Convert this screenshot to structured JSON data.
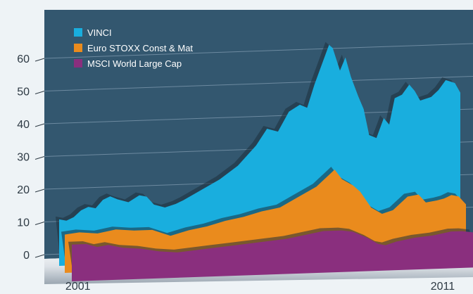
{
  "chart_data": {
    "type": "area",
    "title": "",
    "xlabel": "",
    "ylabel": "",
    "ylim": [
      0,
      60
    ],
    "y_ticks": [
      "0",
      "10",
      "20",
      "30",
      "40",
      "50",
      "60"
    ],
    "x_ticks": [
      {
        "label": "2001",
        "year": 2001
      },
      {
        "label": "2011",
        "year": 2011
      }
    ],
    "x_range": [
      2000.6,
      2011.6
    ],
    "legend_position": "top-left",
    "stacked": false,
    "grid": true,
    "series": [
      {
        "name": "VINCI",
        "color": "#19aede",
        "points": [
          [
            2000.6,
            9.5
          ],
          [
            2000.8,
            9
          ],
          [
            2001.0,
            10
          ],
          [
            2001.2,
            12
          ],
          [
            2001.4,
            13
          ],
          [
            2001.6,
            12.5
          ],
          [
            2001.8,
            15
          ],
          [
            2002.0,
            16
          ],
          [
            2002.2,
            15
          ],
          [
            2002.5,
            14
          ],
          [
            2002.8,
            16
          ],
          [
            2003.0,
            15.5
          ],
          [
            2003.2,
            13
          ],
          [
            2003.5,
            12
          ],
          [
            2003.8,
            13
          ],
          [
            2004.0,
            14
          ],
          [
            2004.5,
            17
          ],
          [
            2005.0,
            20
          ],
          [
            2005.5,
            24
          ],
          [
            2006.0,
            30
          ],
          [
            2006.3,
            35
          ],
          [
            2006.6,
            34
          ],
          [
            2006.9,
            40
          ],
          [
            2007.2,
            42
          ],
          [
            2007.4,
            41
          ],
          [
            2007.6,
            48
          ],
          [
            2007.8,
            54
          ],
          [
            2008.0,
            60
          ],
          [
            2008.1,
            59
          ],
          [
            2008.3,
            52
          ],
          [
            2008.45,
            56
          ],
          [
            2008.6,
            50
          ],
          [
            2008.8,
            44
          ],
          [
            2008.95,
            40
          ],
          [
            2009.1,
            32
          ],
          [
            2009.3,
            31
          ],
          [
            2009.5,
            37
          ],
          [
            2009.65,
            35
          ],
          [
            2009.8,
            43
          ],
          [
            2010.0,
            44
          ],
          [
            2010.2,
            47
          ],
          [
            2010.35,
            45
          ],
          [
            2010.5,
            42
          ],
          [
            2010.8,
            43
          ],
          [
            2011.0,
            45
          ],
          [
            2011.2,
            48
          ],
          [
            2011.45,
            47
          ],
          [
            2011.6,
            44
          ]
        ]
      },
      {
        "name": "Euro STOXX Const & Mat",
        "color": "#ea8b1d",
        "points": [
          [
            2000.6,
            7
          ],
          [
            2001.0,
            7.5
          ],
          [
            2001.5,
            7
          ],
          [
            2002.0,
            8
          ],
          [
            2002.5,
            7.5
          ],
          [
            2003.0,
            7.5
          ],
          [
            2003.5,
            5.5
          ],
          [
            2004.0,
            7
          ],
          [
            2004.5,
            8
          ],
          [
            2005.0,
            9.5
          ],
          [
            2005.5,
            10.5
          ],
          [
            2006.0,
            12
          ],
          [
            2006.5,
            13
          ],
          [
            2007.0,
            16
          ],
          [
            2007.5,
            19
          ],
          [
            2007.8,
            22
          ],
          [
            2008.0,
            24
          ],
          [
            2008.2,
            21
          ],
          [
            2008.5,
            19
          ],
          [
            2008.7,
            17
          ],
          [
            2009.0,
            12
          ],
          [
            2009.3,
            10
          ],
          [
            2009.6,
            11
          ],
          [
            2009.8,
            13
          ],
          [
            2010.0,
            15
          ],
          [
            2010.3,
            15.5
          ],
          [
            2010.5,
            13
          ],
          [
            2010.8,
            13.5
          ],
          [
            2011.0,
            14
          ],
          [
            2011.2,
            15
          ],
          [
            2011.4,
            14.5
          ],
          [
            2011.6,
            12
          ]
        ]
      },
      {
        "name": "MSCI World Large Cap",
        "color": "#8a2f7e",
        "points": [
          [
            2000.6,
            6.5
          ],
          [
            2001.0,
            6.5
          ],
          [
            2001.3,
            5.5
          ],
          [
            2001.6,
            6
          ],
          [
            2002.0,
            5
          ],
          [
            2002.5,
            4.5
          ],
          [
            2003.0,
            3.5
          ],
          [
            2003.5,
            3
          ],
          [
            2004.0,
            3.5
          ],
          [
            2004.5,
            4
          ],
          [
            2005.0,
            4.5
          ],
          [
            2005.5,
            5
          ],
          [
            2006.0,
            5.5
          ],
          [
            2006.5,
            6
          ],
          [
            2007.0,
            7
          ],
          [
            2007.5,
            8
          ],
          [
            2008.0,
            8
          ],
          [
            2008.3,
            7.5
          ],
          [
            2008.7,
            5.5
          ],
          [
            2009.0,
            3.5
          ],
          [
            2009.2,
            3
          ],
          [
            2009.5,
            4
          ],
          [
            2010.0,
            5
          ],
          [
            2010.5,
            5.5
          ],
          [
            2011.0,
            6.5
          ],
          [
            2011.3,
            6.5
          ],
          [
            2011.6,
            6
          ]
        ]
      }
    ]
  }
}
